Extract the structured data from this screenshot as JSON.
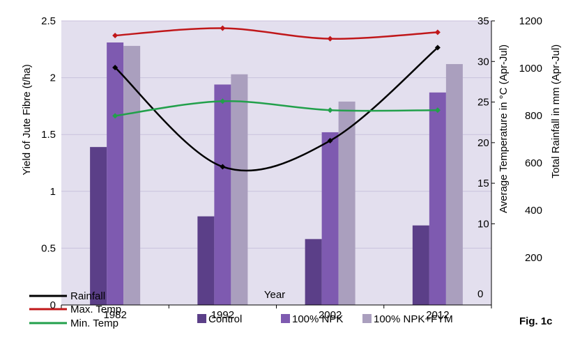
{
  "chart_data": {
    "type": "bar",
    "x_title": "Year",
    "categories": [
      "1982",
      "1992",
      "2002",
      "2012"
    ],
    "primary_axis": {
      "title": "Yield of Jute Fibre (t/ha)",
      "range": [
        0,
        2.5
      ],
      "ticks": [
        "0",
        "0.5",
        "1",
        "1.5",
        "2",
        "2.5"
      ]
    },
    "temperature_axis": {
      "title": "Average Temperature in °C  (Apr-Jul)",
      "range": [
        0,
        35
      ],
      "ticks": [
        "0",
        "10",
        "15",
        "20",
        "25",
        "30",
        "35"
      ]
    },
    "rainfall_axis": {
      "title": "Total Rainfall in mm (Apr-Jul)",
      "range": [
        0,
        1200
      ],
      "ticks": [
        "200",
        "400",
        "600",
        "800",
        "1000",
        "1200"
      ]
    },
    "bar_series": [
      {
        "name": "Control",
        "color": "#5b3f88",
        "values": [
          1.39,
          0.78,
          0.58,
          0.7
        ]
      },
      {
        "name": "100% NPK",
        "color": "#7e5ab0",
        "values": [
          2.31,
          1.94,
          1.52,
          1.87
        ]
      },
      {
        "name": "100% NPK+FYM",
        "color": "#aa9fbe",
        "values": [
          2.28,
          2.03,
          1.79,
          2.12
        ]
      }
    ],
    "line_series": [
      {
        "name": "Rainfall",
        "axis": "rainfall",
        "color": "#000000",
        "values": [
          1003,
          584,
          694,
          1087
        ]
      },
      {
        "name": "Max. Temp",
        "axis": "temperature",
        "color": "#c0171a",
        "values": [
          33.2,
          34.1,
          32.8,
          33.6
        ]
      },
      {
        "name": "Min. Temp",
        "axis": "temperature",
        "color": "#22a04b",
        "values": [
          23.3,
          25.1,
          24.0,
          24.0
        ]
      }
    ],
    "figure_label": "Fig. 1c",
    "plot_background": "#e3dfee",
    "legend_placement": "bottom"
  }
}
